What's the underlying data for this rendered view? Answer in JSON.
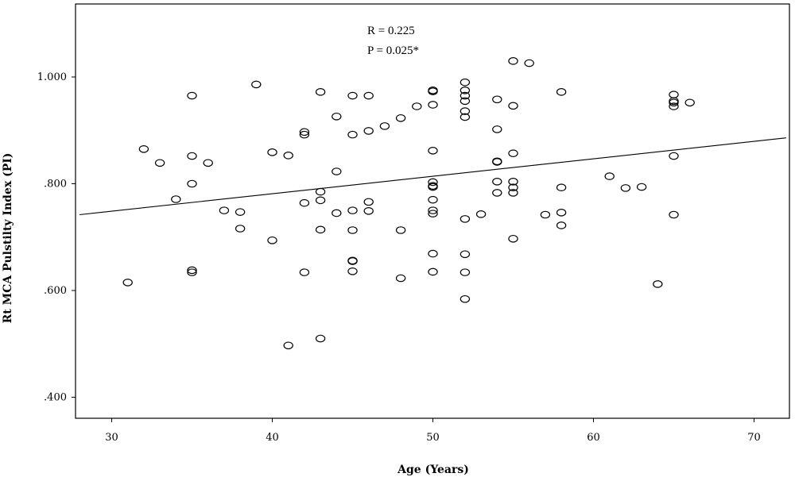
{
  "chart_data": {
    "type": "scatter",
    "title": "",
    "xlabel": "Age (Years)",
    "ylabel": "Rt MCA Pulstilty Index (PI)",
    "xlim": [
      28,
      72
    ],
    "ylim": [
      0.36,
      1.14
    ],
    "xticks": [
      30,
      40,
      50,
      60,
      70
    ],
    "xtick_labels": [
      "30",
      "40",
      "50",
      "60",
      "70"
    ],
    "yticks": [
      0.4,
      0.6,
      0.8,
      1.0
    ],
    "ytick_labels": [
      ".400",
      ".600",
      ".800",
      "1.000"
    ],
    "grid": false,
    "legend": "none",
    "annotations": {
      "r_text": "R = 0.225",
      "p_text": "P = 0.025*"
    },
    "fit_line": {
      "x": [
        28,
        72
      ],
      "y": [
        0.742,
        0.886
      ]
    },
    "points": [
      [
        31,
        0.615
      ],
      [
        32,
        0.865
      ],
      [
        33,
        0.839
      ],
      [
        34,
        0.771
      ],
      [
        35,
        0.965
      ],
      [
        35,
        0.852
      ],
      [
        35,
        0.8
      ],
      [
        35,
        0.638
      ],
      [
        35,
        0.634
      ],
      [
        36,
        0.839
      ],
      [
        37,
        0.75
      ],
      [
        38,
        0.747
      ],
      [
        38,
        0.716
      ],
      [
        39,
        0.986
      ],
      [
        40,
        0.859
      ],
      [
        40,
        0.694
      ],
      [
        41,
        0.853
      ],
      [
        41,
        0.497
      ],
      [
        42,
        0.897
      ],
      [
        42,
        0.892
      ],
      [
        42,
        0.764
      ],
      [
        42,
        0.634
      ],
      [
        43,
        0.972
      ],
      [
        43,
        0.785
      ],
      [
        43,
        0.769
      ],
      [
        43,
        0.714
      ],
      [
        43,
        0.51
      ],
      [
        44,
        0.926
      ],
      [
        44,
        0.823
      ],
      [
        44,
        0.745
      ],
      [
        45,
        0.965
      ],
      [
        45,
        0.892
      ],
      [
        45,
        0.75
      ],
      [
        45,
        0.713
      ],
      [
        45,
        0.656
      ],
      [
        45,
        0.655
      ],
      [
        45,
        0.636
      ],
      [
        46,
        0.965
      ],
      [
        46,
        0.899
      ],
      [
        46,
        0.766
      ],
      [
        46,
        0.749
      ],
      [
        47,
        0.908
      ],
      [
        48,
        0.923
      ],
      [
        48,
        0.713
      ],
      [
        48,
        0.623
      ],
      [
        49,
        0.945
      ],
      [
        50,
        0.975
      ],
      [
        50,
        0.973
      ],
      [
        50,
        0.948
      ],
      [
        50,
        0.862
      ],
      [
        50,
        0.803
      ],
      [
        50,
        0.796
      ],
      [
        50,
        0.794
      ],
      [
        50,
        0.77
      ],
      [
        50,
        0.75
      ],
      [
        50,
        0.744
      ],
      [
        50,
        0.669
      ],
      [
        50,
        0.635
      ],
      [
        52,
        0.99
      ],
      [
        52,
        0.975
      ],
      [
        52,
        0.965
      ],
      [
        52,
        0.955
      ],
      [
        52,
        0.936
      ],
      [
        52,
        0.925
      ],
      [
        52,
        0.734
      ],
      [
        52,
        0.668
      ],
      [
        52,
        0.634
      ],
      [
        52,
        0.584
      ],
      [
        53,
        0.743
      ],
      [
        54,
        0.958
      ],
      [
        54,
        0.902
      ],
      [
        54,
        0.842
      ],
      [
        54,
        0.841
      ],
      [
        54,
        0.804
      ],
      [
        54,
        0.783
      ],
      [
        55,
        1.03
      ],
      [
        55,
        0.946
      ],
      [
        55,
        0.857
      ],
      [
        55,
        0.804
      ],
      [
        55,
        0.793
      ],
      [
        55,
        0.783
      ],
      [
        55,
        0.697
      ],
      [
        56,
        1.026
      ],
      [
        57,
        0.742
      ],
      [
        58,
        0.972
      ],
      [
        58,
        0.793
      ],
      [
        58,
        0.746
      ],
      [
        58,
        0.722
      ],
      [
        61,
        0.814
      ],
      [
        62,
        0.792
      ],
      [
        63,
        0.794
      ],
      [
        64,
        0.612
      ],
      [
        65,
        0.967
      ],
      [
        65,
        0.955
      ],
      [
        65,
        0.952
      ],
      [
        65,
        0.945
      ],
      [
        65,
        0.852
      ],
      [
        65,
        0.742
      ],
      [
        66,
        0.952
      ]
    ]
  }
}
